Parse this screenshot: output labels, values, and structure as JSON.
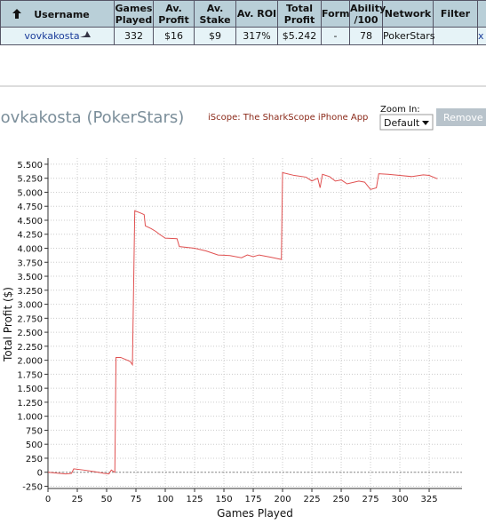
{
  "table": {
    "headers": [
      "Username",
      "Games Played",
      "Av. Profit",
      "Av. Stake",
      "Av. ROI",
      "Total Profit",
      "Form",
      "Ability /100",
      "Network",
      "Filter"
    ],
    "rows": [
      [
        "vovkakosta",
        "332",
        "$16",
        "$9",
        "317%",
        "$5.242",
        "-",
        "78",
        "PokerStars"
      ]
    ],
    "remove_link": "x"
  },
  "header": {
    "title": "vovkakosta (PokerStars)",
    "app_link": "iScope: The SharkScope iPhone App",
    "zoom_label": "Zoom In:",
    "zoom_option": "Default",
    "remove_button": "Remove"
  },
  "chart_data": {
    "type": "line",
    "xlabel": "Games Played",
    "ylabel": "Total Profit ($)",
    "color": "#e05050",
    "grid": true,
    "x": [
      0,
      5,
      15,
      20,
      22,
      30,
      40,
      48,
      52,
      54,
      56,
      57,
      58,
      62,
      70,
      72,
      74,
      80,
      82,
      83,
      88,
      92,
      95,
      100,
      110,
      112,
      125,
      135,
      145,
      155,
      165,
      170,
      175,
      180,
      190,
      199,
      200,
      210,
      220,
      225,
      230,
      232,
      234,
      240,
      245,
      250,
      255,
      265,
      270,
      275,
      280,
      282,
      290,
      300,
      310,
      320,
      325,
      332
    ],
    "values": [
      0,
      -10,
      -30,
      -20,
      60,
      40,
      10,
      -20,
      -30,
      40,
      10,
      0,
      2050,
      2050,
      1980,
      1920,
      4670,
      4620,
      4600,
      4400,
      4350,
      4300,
      4250,
      4180,
      4170,
      4030,
      4000,
      3950,
      3880,
      3870,
      3830,
      3880,
      3850,
      3880,
      3840,
      3800,
      5350,
      5300,
      5270,
      5200,
      5250,
      5080,
      5320,
      5280,
      5200,
      5220,
      5150,
      5200,
      5180,
      5050,
      5080,
      5330,
      5320,
      5300,
      5280,
      5310,
      5300,
      5240
    ],
    "xlim": [
      0,
      353
    ],
    "xticks": [
      0,
      25,
      50,
      75,
      100,
      125,
      150,
      175,
      200,
      225,
      250,
      275,
      300,
      325
    ],
    "ylim": [
      -290,
      5610
    ],
    "yticks": [
      {
        "value": 5500,
        "label": "5.500"
      },
      {
        "value": 5250,
        "label": "5.250"
      },
      {
        "value": 5000,
        "label": "5.000"
      },
      {
        "value": 4750,
        "label": "4.750"
      },
      {
        "value": 4500,
        "label": "4.500"
      },
      {
        "value": 4250,
        "label": "4.250"
      },
      {
        "value": 4000,
        "label": "4.000"
      },
      {
        "value": 3750,
        "label": "3.750"
      },
      {
        "value": 3500,
        "label": "3.500"
      },
      {
        "value": 3250,
        "label": "3.250"
      },
      {
        "value": 3000,
        "label": "3.000"
      },
      {
        "value": 2750,
        "label": "2.750"
      },
      {
        "value": 2500,
        "label": "2.500"
      },
      {
        "value": 2250,
        "label": "2.250"
      },
      {
        "value": 2000,
        "label": "2.000"
      },
      {
        "value": 1750,
        "label": "1.750"
      },
      {
        "value": 1500,
        "label": "1.500"
      },
      {
        "value": 1250,
        "label": "1.250"
      },
      {
        "value": 1000,
        "label": "1.000"
      },
      750,
      500,
      250,
      0,
      -250
    ]
  }
}
